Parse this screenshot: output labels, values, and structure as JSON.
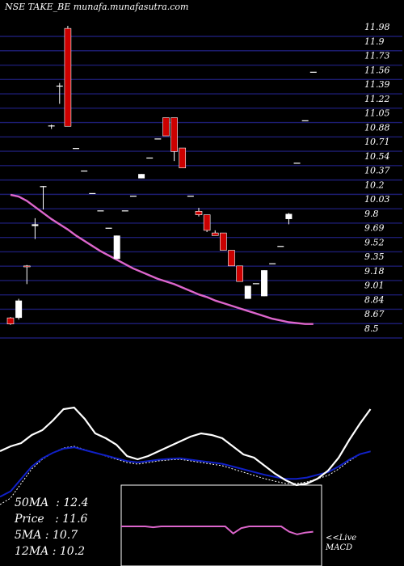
{
  "title": "NSE TAKE_BE munafa.munafasutra.com",
  "colors": {
    "background": "#000000",
    "grid": "#1c1c70",
    "bear": "#cc0000",
    "bull": "#ffffff",
    "ma": "#dd66cc",
    "macd_line": "#ffffff",
    "signal_line": "#1020c8",
    "histogram_line": "#dd66cc"
  },
  "chart_data": [
    {
      "type": "candlestick",
      "title": "NSE TAKE_BE munafa.munafasutra.com",
      "y_tick_labels": [
        "11.98",
        "11.9",
        "11.73",
        "11.56",
        "11.39",
        "11.22",
        "11.05",
        "10.88",
        "10.71",
        "10.54",
        "10.37",
        "10.2",
        "10.03",
        "9.8",
        "9.69",
        "9.52",
        "9.35",
        "9.18",
        "9.01",
        "8.84",
        "8.67",
        "8.5"
      ],
      "ylim": [
        8.5,
        11.98
      ],
      "grid": true,
      "candles": [
        {
          "o": 8.62,
          "h": 8.63,
          "l": 8.54,
          "c": 8.55
        },
        {
          "o": 8.62,
          "h": 8.84,
          "l": 8.6,
          "c": 8.82
        },
        {
          "o": 9.22,
          "h": 9.23,
          "l": 9.01,
          "c": 9.21
        },
        {
          "o": 9.68,
          "h": 9.77,
          "l": 9.53,
          "c": 9.7
        },
        {
          "o": 10.14,
          "h": 10.14,
          "l": 9.87,
          "c": 10.14
        },
        {
          "o": 10.83,
          "h": 10.85,
          "l": 10.8,
          "c": 10.84
        },
        {
          "o": 11.3,
          "h": 11.33,
          "l": 11.09,
          "c": 11.3
        },
        {
          "o": 11.96,
          "h": 11.99,
          "l": 10.83,
          "c": 10.83
        },
        {
          "o": 10.58,
          "h": 10.58,
          "l": 10.58,
          "c": 10.58
        },
        {
          "o": 10.32,
          "h": 10.32,
          "l": 10.32,
          "c": 10.32
        },
        {
          "o": 10.06,
          "h": 10.06,
          "l": 10.06,
          "c": 10.06
        },
        {
          "o": 9.86,
          "h": 9.86,
          "l": 9.86,
          "c": 9.86
        },
        {
          "o": 9.66,
          "h": 9.66,
          "l": 9.66,
          "c": 9.66
        },
        {
          "o": 9.3,
          "h": 9.57,
          "l": 9.3,
          "c": 9.57
        },
        {
          "o": 9.86,
          "h": 9.86,
          "l": 9.86,
          "c": 9.86
        },
        {
          "o": 10.03,
          "h": 10.03,
          "l": 10.03,
          "c": 10.03
        },
        {
          "o": 10.23,
          "h": 10.28,
          "l": 10.23,
          "c": 10.28
        },
        {
          "o": 10.47,
          "h": 10.47,
          "l": 10.47,
          "c": 10.47
        },
        {
          "o": 10.69,
          "h": 10.69,
          "l": 10.69,
          "c": 10.69
        },
        {
          "o": 10.93,
          "h": 10.93,
          "l": 10.72,
          "c": 10.72
        },
        {
          "o": 10.93,
          "h": 10.93,
          "l": 10.43,
          "c": 10.54
        },
        {
          "o": 10.58,
          "h": 10.58,
          "l": 10.35,
          "c": 10.35
        },
        {
          "o": 10.03,
          "h": 10.03,
          "l": 10.03,
          "c": 10.03
        },
        {
          "o": 9.85,
          "h": 9.89,
          "l": 9.79,
          "c": 9.81
        },
        {
          "o": 9.81,
          "h": 9.81,
          "l": 9.61,
          "c": 9.63
        },
        {
          "o": 9.6,
          "h": 9.63,
          "l": 9.57,
          "c": 9.57
        },
        {
          "o": 9.6,
          "h": 9.6,
          "l": 9.4,
          "c": 9.4
        },
        {
          "o": 9.4,
          "h": 9.4,
          "l": 9.22,
          "c": 9.22
        },
        {
          "o": 9.22,
          "h": 9.22,
          "l": 9.04,
          "c": 9.04
        },
        {
          "o": 8.84,
          "h": 8.99,
          "l": 8.84,
          "c": 8.99
        },
        {
          "o": 9.02,
          "h": 9.02,
          "l": 9.02,
          "c": 9.02
        },
        {
          "o": 8.87,
          "h": 9.17,
          "l": 8.87,
          "c": 9.17
        },
        {
          "o": 9.25,
          "h": 9.25,
          "l": 9.25,
          "c": 9.25
        },
        {
          "o": 9.45,
          "h": 9.45,
          "l": 9.45,
          "c": 9.45
        },
        {
          "o": 9.76,
          "h": 9.83,
          "l": 9.7,
          "c": 9.82
        },
        {
          "o": 10.41,
          "h": 10.41,
          "l": 10.41,
          "c": 10.41
        },
        {
          "o": 10.9,
          "h": 10.9,
          "l": 10.9,
          "c": 10.9
        },
        {
          "o": 11.46,
          "h": 11.46,
          "l": 11.46,
          "c": 11.46
        }
      ],
      "moving_average": [
        10.04,
        10.02,
        9.97,
        9.9,
        9.83,
        9.76,
        9.7,
        9.64,
        9.57,
        9.51,
        9.45,
        9.39,
        9.34,
        9.29,
        9.24,
        9.19,
        9.15,
        9.11,
        9.07,
        9.04,
        9.01,
        8.97,
        8.93,
        8.89,
        8.86,
        8.82,
        8.79,
        8.76,
        8.73,
        8.7,
        8.67,
        8.64,
        8.61,
        8.59,
        8.57,
        8.56,
        8.55,
        8.55
      ]
    },
    {
      "type": "line",
      "series": [
        {
          "values": [
            1.05,
            1.2,
            1.3,
            1.55,
            1.7,
            2.0,
            2.35,
            2.4,
            2.05,
            1.6,
            1.45,
            1.25,
            0.9,
            0.8,
            0.9,
            1.05,
            1.2,
            1.35,
            1.5,
            1.6,
            1.55,
            1.45,
            1.2,
            0.95,
            0.85,
            0.6,
            0.35,
            0.15,
            0.0,
            0.05,
            0.2,
            0.45,
            0.85,
            1.4,
            1.9,
            2.35
          ]
        },
        {
          "values": [
            -0.6,
            -0.4,
            0.05,
            0.5,
            0.8,
            1.0,
            1.15,
            1.2,
            1.1,
            1.0,
            0.9,
            0.8,
            0.7,
            0.65,
            0.7,
            0.75,
            0.78,
            0.8,
            0.75,
            0.7,
            0.65,
            0.6,
            0.5,
            0.4,
            0.3,
            0.2,
            0.12,
            0.05,
            0.05,
            0.1,
            0.2,
            0.3,
            0.5,
            0.75,
            0.95,
            1.05
          ]
        }
      ]
    },
    {
      "type": "line",
      "series": [
        {
          "values": [
            0.0,
            0.0,
            0.0,
            0.0,
            -0.05,
            0.0,
            0.0,
            0.0,
            0.0,
            0.0,
            0.0,
            0.0,
            0.0,
            0.0,
            -0.4,
            -0.1,
            0.0,
            0.0,
            0.0,
            0.0,
            0.0,
            -0.3,
            -0.45,
            -0.35,
            -0.3
          ]
        }
      ]
    }
  ],
  "info": {
    "ma50_label": "50MA",
    "ma50_value": "12.4",
    "price_label": "Price",
    "price_value": "11.6",
    "ma5_label": "5MA",
    "ma5_value": "10.7",
    "ma12_label": "12MA",
    "ma12_value": "10.2"
  },
  "live_label": "<<Live",
  "macd_label": "MACD"
}
